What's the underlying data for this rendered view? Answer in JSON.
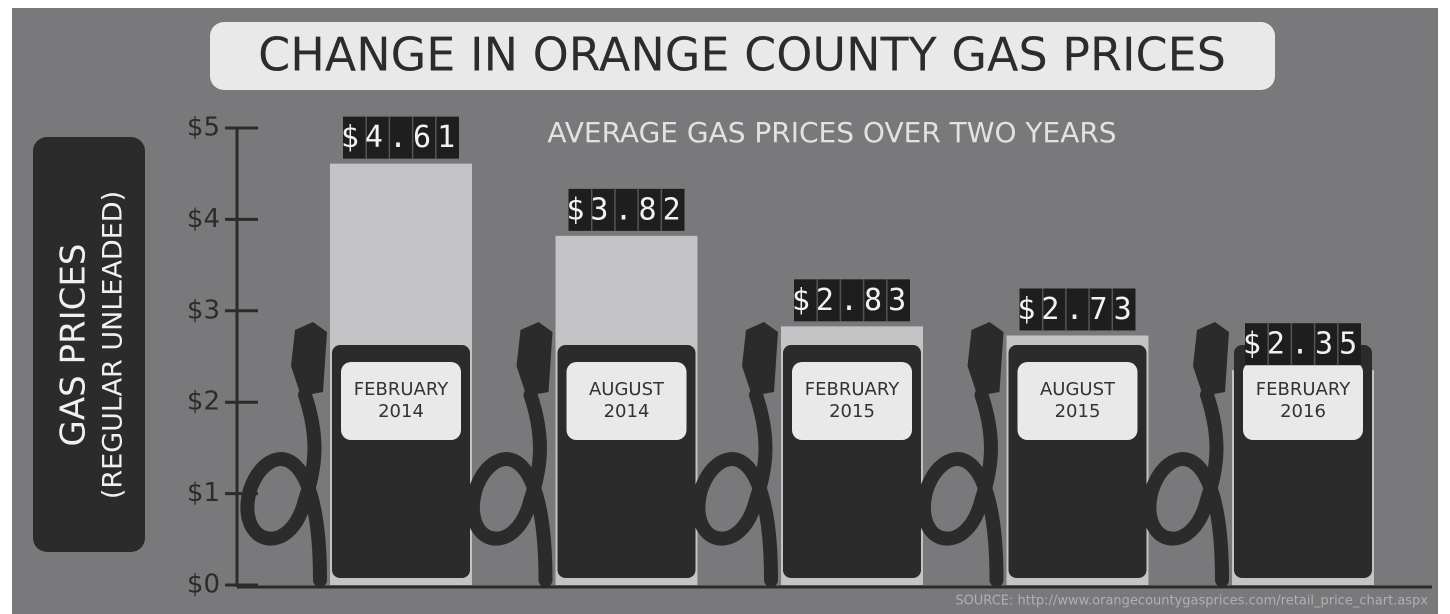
{
  "chart_data": {
    "type": "bar",
    "title": "CHANGE IN ORANGE COUNTY GAS PRICES",
    "subtitle": "AVERAGE GAS PRICES OVER TWO YEARS",
    "y_label": "GAS PRICES",
    "y_sublabel": "(REGULAR UNLEADED)",
    "categories": [
      "FEBRUARY 2014",
      "AUGUST 2014",
      "FEBRUARY 2015",
      "AUGUST 2015",
      "FEBRUARY 2016"
    ],
    "values": [
      4.61,
      3.82,
      2.83,
      2.73,
      2.35
    ],
    "value_labels": [
      "$4.61",
      "$3.82",
      "$2.83",
      "$2.73",
      "$2.35"
    ],
    "color": "#c4c4c6",
    "ylim": [
      0,
      5
    ],
    "yticks": [
      {
        "value": 0,
        "label": "$0"
      },
      {
        "value": 1,
        "label": "$1"
      },
      {
        "value": 2,
        "label": "$2"
      },
      {
        "value": 3,
        "label": "$3"
      },
      {
        "value": 4,
        "label": "$4"
      },
      {
        "value": 5,
        "label": "$5"
      }
    ],
    "source": "SOURCE: http://www.orangecountygasprices.com/retail_price_chart.aspx"
  }
}
